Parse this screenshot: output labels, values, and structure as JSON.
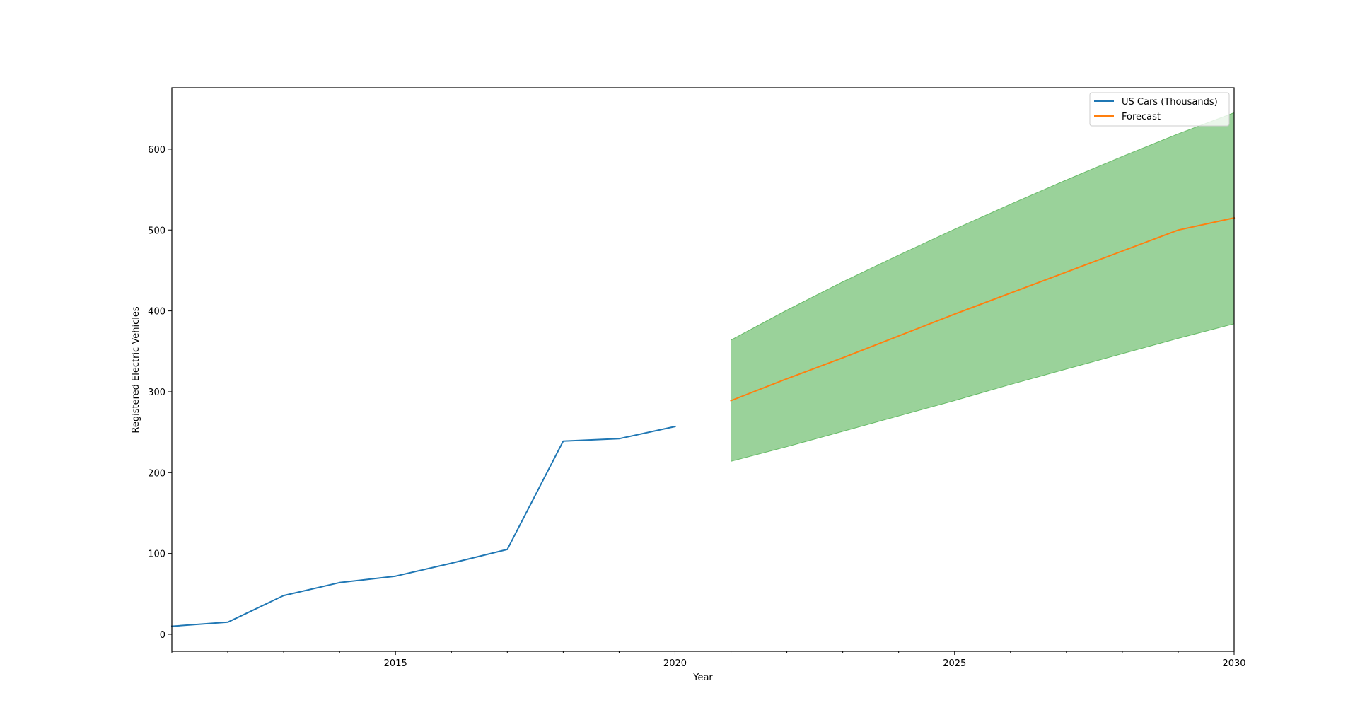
{
  "chart_data": {
    "type": "line",
    "title": "",
    "xlabel": "Year",
    "ylabel": "Registered Electric Vehicles",
    "xlim": [
      2011,
      2030
    ],
    "ylim": [
      -21,
      676
    ],
    "x_major_ticks": [
      2015,
      2020,
      2025,
      2030
    ],
    "x_minor_ticks": [
      2011,
      2012,
      2013,
      2014,
      2016,
      2017,
      2018,
      2019,
      2021,
      2022,
      2023,
      2024,
      2026,
      2027,
      2028,
      2029
    ],
    "y_ticks": [
      0,
      100,
      200,
      300,
      400,
      500,
      600
    ],
    "legend_position": "top-right",
    "series": [
      {
        "name": "US Cars (Thousands)",
        "color": "#1f77b4",
        "x": [
          2011,
          2012,
          2013,
          2014,
          2015,
          2016,
          2017,
          2018,
          2019,
          2020
        ],
        "values": [
          10,
          15,
          48,
          64,
          72,
          88,
          105,
          239,
          242,
          257
        ]
      },
      {
        "name": "Forecast",
        "color": "#ff7f0e",
        "x": [
          2021,
          2022,
          2023,
          2024,
          2025,
          2026,
          2027,
          2028,
          2029,
          2030
        ],
        "values": [
          289,
          316,
          342,
          369,
          396,
          422,
          448,
          474,
          500,
          515
        ]
      }
    ],
    "confidence_band": {
      "color": "#2ca02c",
      "x": [
        2021,
        2022,
        2023,
        2024,
        2025,
        2026,
        2027,
        2028,
        2029,
        2030
      ],
      "upper": [
        364,
        401,
        436,
        469,
        501,
        532,
        562,
        591,
        619,
        645
      ],
      "lower": [
        214,
        232,
        251,
        270,
        289,
        309,
        328,
        347,
        366,
        384
      ]
    }
  }
}
